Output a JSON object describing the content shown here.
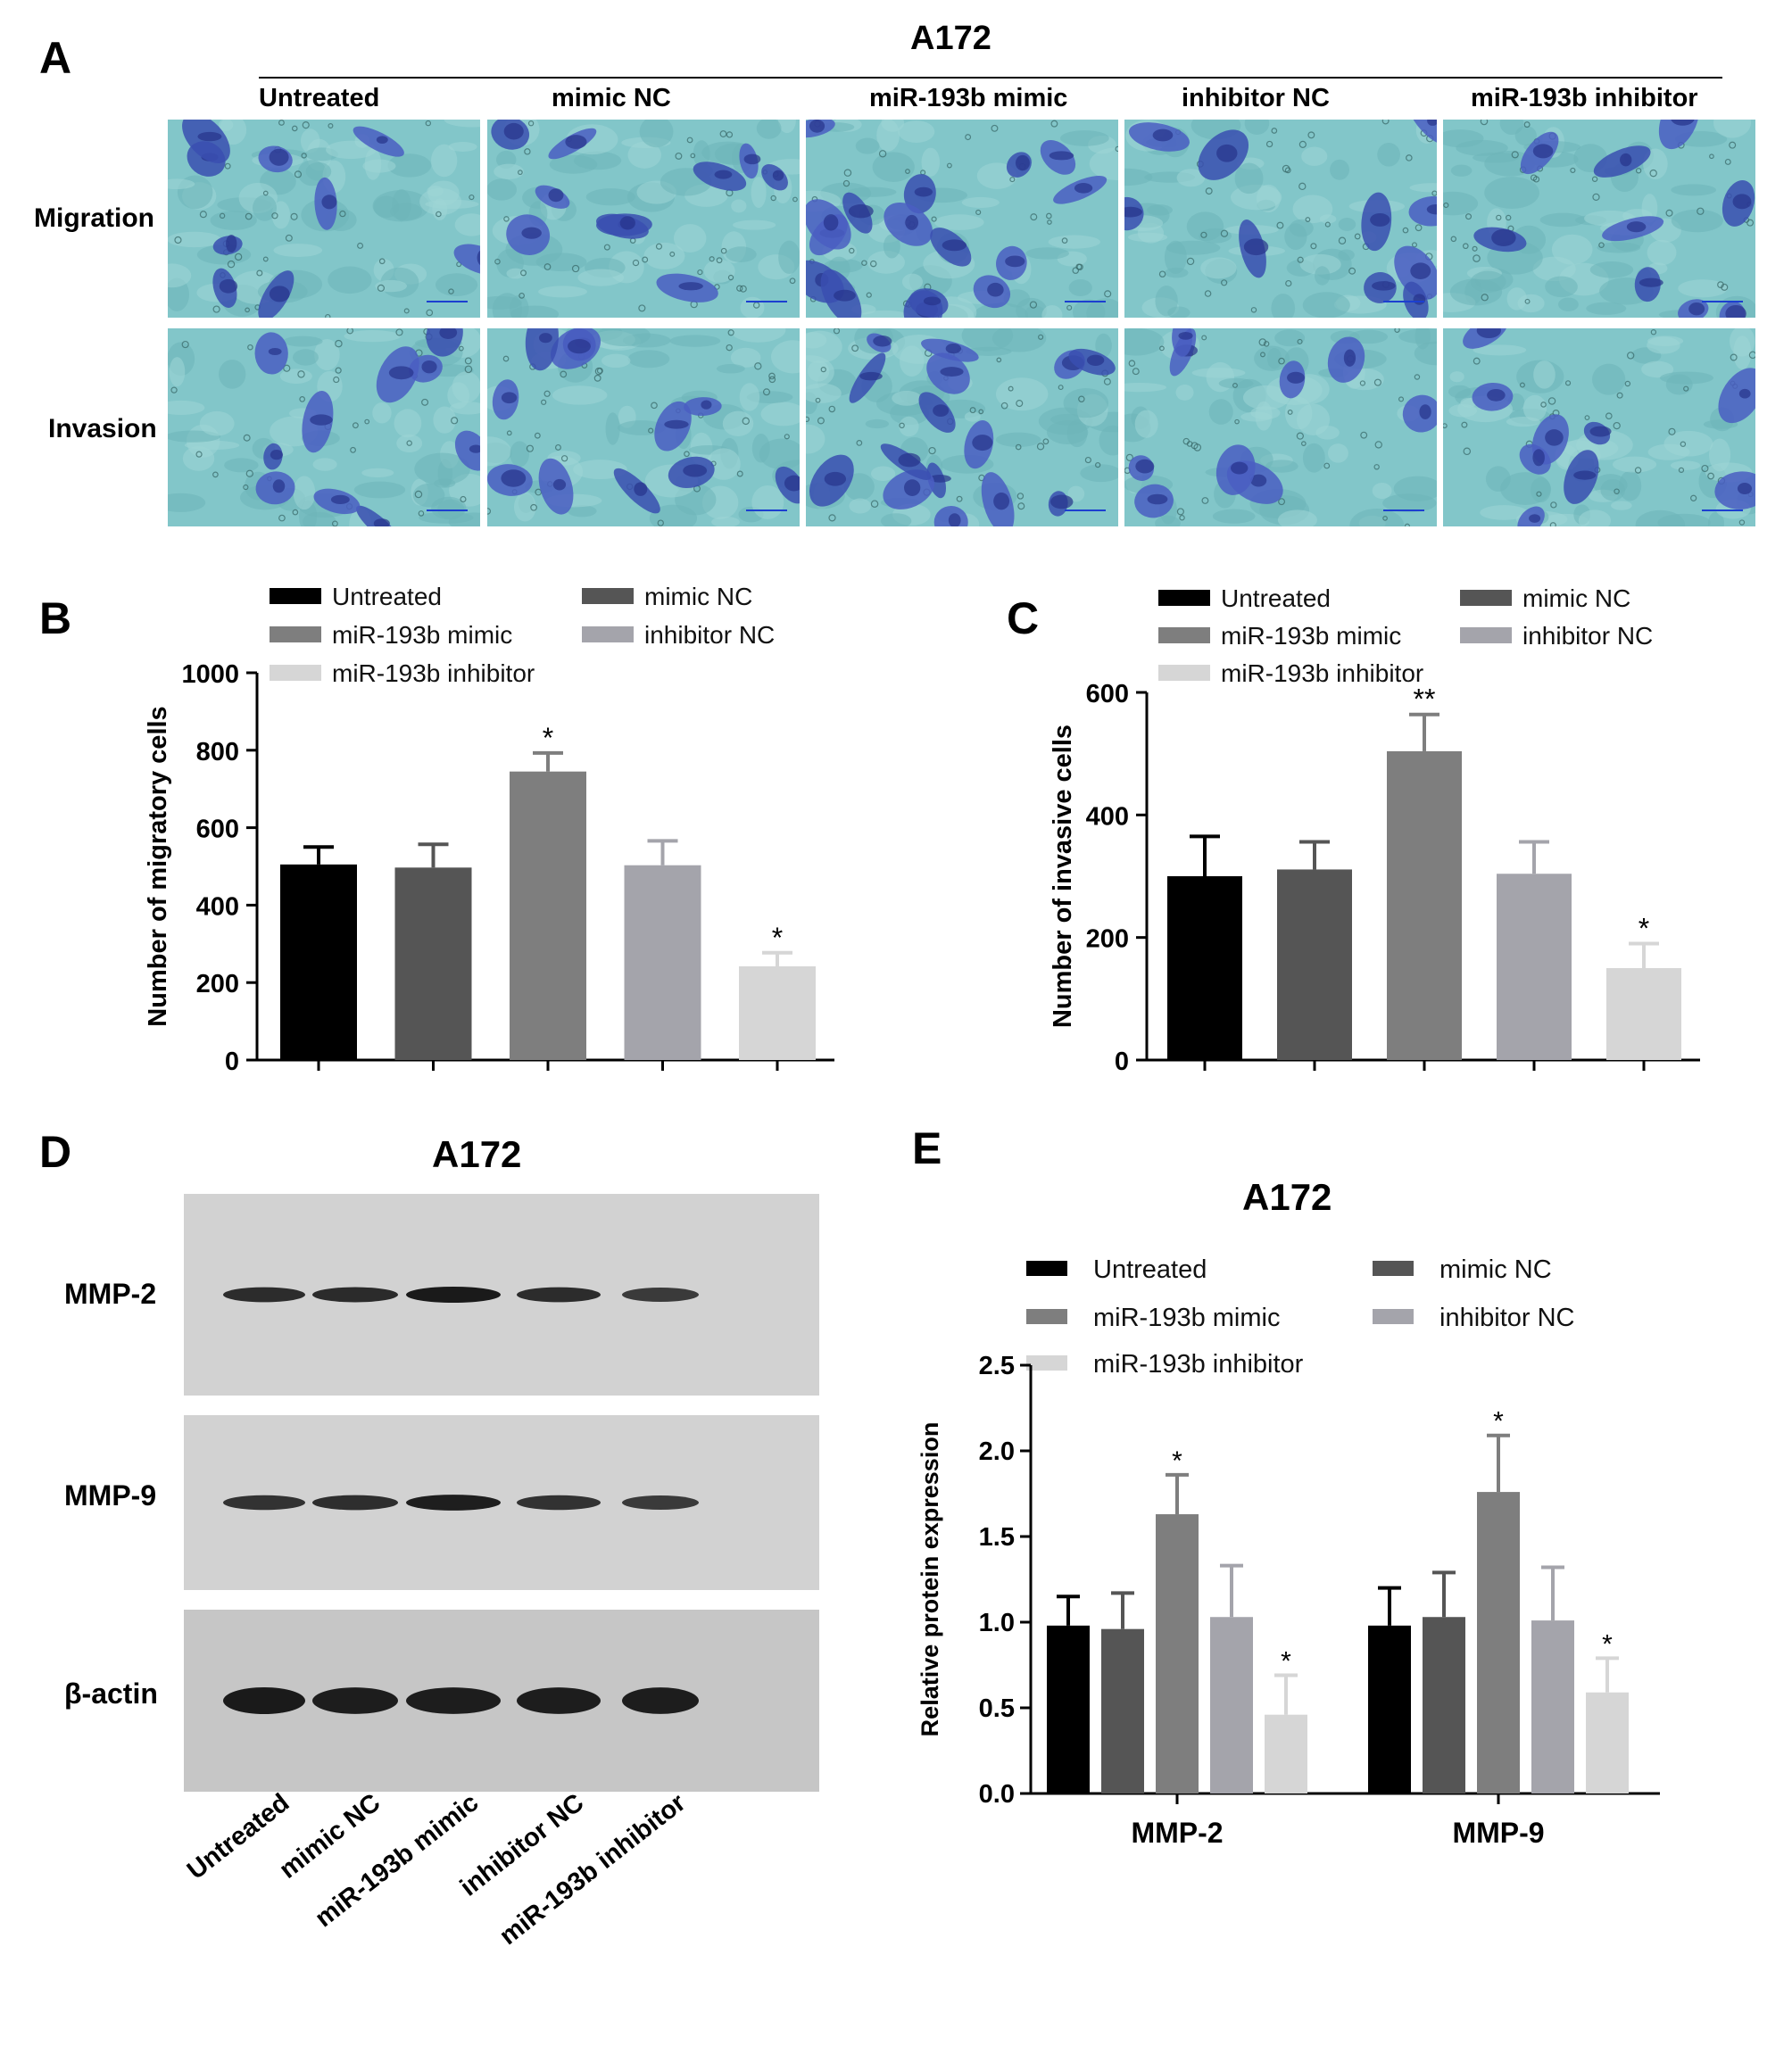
{
  "panel_a": {
    "letter": "A",
    "cell_line": "A172",
    "columns": [
      "Untreated",
      "mimic NC",
      "miR-193b mimic",
      "inhibitor NC",
      "miR-193b inhibitor"
    ],
    "rows": [
      "Migration",
      "Invasion"
    ]
  },
  "panel_b": {
    "letter": "B"
  },
  "panel_c": {
    "letter": "C"
  },
  "panel_d": {
    "letter": "D",
    "cell_line": "A172",
    "proteins": [
      "MMP-2",
      "MMP-9",
      "β-actin"
    ],
    "lanes": [
      "Untreated",
      "mimic NC",
      "miR-193b mimic",
      "inhibitor NC",
      "miR-193b inhibitor"
    ],
    "band_intensity": [
      [
        0.78,
        0.8,
        1.0,
        0.78,
        0.62
      ],
      [
        0.72,
        0.76,
        0.95,
        0.72,
        0.62
      ],
      [
        1.0,
        0.96,
        0.96,
        0.96,
        0.96
      ]
    ]
  },
  "panel_e": {
    "letter": "E",
    "title": "A172"
  },
  "colors": {
    "Untreated": "#000000",
    "mimic NC": "#555555",
    "miR-193b mimic": "#7e7e7e",
    "inhibitor NC": "#a4a4ab",
    "miR-193b inhibitor": "#d6d6d6"
  },
  "chart_data": [
    {
      "id": "B",
      "type": "bar",
      "categories": [
        "Untreated",
        "mimic NC",
        "miR-193b mimic",
        "inhibitor NC",
        "miR-193b inhibitor"
      ],
      "values": [
        505,
        497,
        745,
        503,
        242
      ],
      "errors": [
        45,
        60,
        48,
        63,
        35
      ],
      "significance": [
        "",
        "",
        "*",
        "",
        "*"
      ],
      "ylabel": "Number of migratory cells",
      "ylim": [
        0,
        1000
      ],
      "yticks": [
        0,
        200,
        400,
        600,
        800,
        1000
      ],
      "legend": [
        "Untreated",
        "mimic NC",
        "miR-193b mimic",
        "inhibitor NC",
        "miR-193b inhibitor"
      ]
    },
    {
      "id": "C",
      "type": "bar",
      "categories": [
        "Untreated",
        "mimic NC",
        "miR-193b mimic",
        "inhibitor NC",
        "miR-193b inhibitor"
      ],
      "values": [
        300,
        311,
        504,
        304,
        150
      ],
      "errors": [
        65,
        45,
        60,
        52,
        40
      ],
      "significance": [
        "",
        "",
        "**",
        "",
        "*"
      ],
      "ylabel": "Number of invasive cells",
      "ylim": [
        0,
        600
      ],
      "yticks": [
        0,
        200,
        400,
        600
      ],
      "legend": [
        "Untreated",
        "mimic NC",
        "miR-193b mimic",
        "inhibitor NC",
        "miR-193b inhibitor"
      ]
    },
    {
      "id": "E",
      "type": "bar",
      "title": "A172",
      "categories": [
        "MMP-2",
        "MMP-9"
      ],
      "series": [
        {
          "name": "Untreated",
          "values": [
            0.98,
            0.98
          ],
          "errors": [
            0.17,
            0.22
          ],
          "significance": [
            "",
            ""
          ]
        },
        {
          "name": "mimic NC",
          "values": [
            0.96,
            1.03
          ],
          "errors": [
            0.21,
            0.26
          ],
          "significance": [
            "",
            ""
          ]
        },
        {
          "name": "miR-193b mimic",
          "values": [
            1.63,
            1.76
          ],
          "errors": [
            0.23,
            0.33
          ],
          "significance": [
            "*",
            "*"
          ]
        },
        {
          "name": "inhibitor NC",
          "values": [
            1.03,
            1.01
          ],
          "errors": [
            0.3,
            0.31
          ],
          "significance": [
            "",
            ""
          ]
        },
        {
          "name": "miR-193b inhibitor",
          "values": [
            0.46,
            0.59
          ],
          "errors": [
            0.23,
            0.2
          ],
          "significance": [
            "*",
            "*"
          ]
        }
      ],
      "ylabel": "Relative protein expression",
      "ylim": [
        0,
        2.5
      ],
      "yticks": [
        "0.0",
        "0.5",
        "1.0",
        "1.5",
        "2.0",
        "2.5"
      ]
    }
  ]
}
